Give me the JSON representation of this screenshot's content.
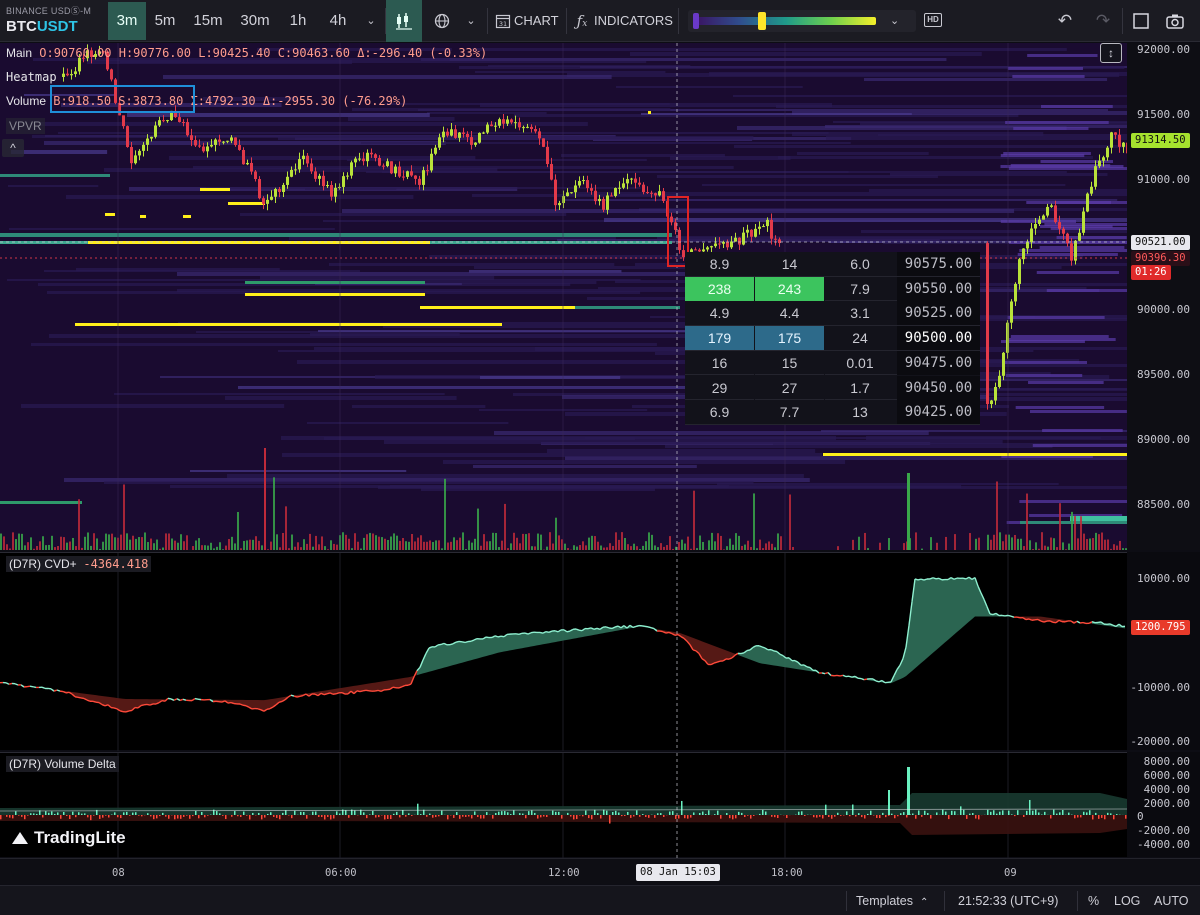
{
  "toolbar": {
    "exchange": "BINANCE USDⓈ-M",
    "symbol_base": "BTC",
    "symbol_quote": "USDT",
    "timeframes": [
      "3m",
      "5m",
      "15m",
      "30m",
      "1h",
      "4h"
    ],
    "active_timeframe": "3m",
    "chart_label": "CHART",
    "indicators_label": "INDICATORS",
    "hd_label": "HD"
  },
  "legend": {
    "main_label": "Main",
    "open": "O:90760.00",
    "high": "H:90776.00",
    "low": "L:90425.40",
    "close": "C:90463.60",
    "change": "Δ:-296.40 (-0.33%)",
    "heatmap_label": "Heatmap",
    "volume_label": "Volume",
    "buy": "B:918.50",
    "sell": "S:3873.80",
    "sum": "Σ:4792.30",
    "delta": "Δ:-2955.30 (-76.29%)",
    "vpvr_label": "VPVR",
    "collapse_symbol": "^"
  },
  "price_axis": {
    "ticks": [
      "92000.00",
      "91500.00",
      "91000.00",
      "90500.00",
      "90000.00",
      "89500.00",
      "89000.00",
      "88500.00"
    ],
    "last_price": "91314.50",
    "crosshair_price": "90521.00",
    "current_price": "90396.30",
    "countdown": "01:26"
  },
  "orderbook": {
    "rows": [
      {
        "bid": "8.9",
        "ask": "14",
        "total": "6.0",
        "price": "90575.00",
        "highlight": "none"
      },
      {
        "bid": "238",
        "ask": "243",
        "total": "7.9",
        "price": "90550.00",
        "highlight": "green"
      },
      {
        "bid": "4.9",
        "ask": "4.4",
        "total": "3.1",
        "price": "90525.00",
        "highlight": "none"
      },
      {
        "bid": "179",
        "ask": "175",
        "total": "24",
        "price": "90500.00",
        "highlight": "blue"
      },
      {
        "bid": "16",
        "ask": "15",
        "total": "0.01",
        "price": "90475.00",
        "highlight": "none"
      },
      {
        "bid": "29",
        "ask": "27",
        "total": "1.7",
        "price": "90450.00",
        "highlight": "none"
      },
      {
        "bid": "6.9",
        "ask": "7.7",
        "total": "13",
        "price": "90425.00",
        "highlight": "none"
      }
    ]
  },
  "cvd": {
    "title": "(D7R) CVD+",
    "value": "-4364.418",
    "ticks": [
      "10000.00",
      "-10000.00",
      "-20000.00"
    ],
    "last": "1200.795"
  },
  "volume_delta": {
    "title": "(D7R) Volume Delta",
    "ticks": [
      "8000.00",
      "6000.00",
      "4000.00",
      "2000.00",
      "0",
      "-2000.00",
      "-4000.00"
    ]
  },
  "time_axis": {
    "labels": [
      "08",
      "06:00",
      "12:00",
      "18:00",
      "09"
    ],
    "crosshair_time": "08 Jan 15:03"
  },
  "status_bar": {
    "templates_label": "Templates",
    "clock": "21:52:33 (UTC+9)",
    "percent_label": "%",
    "log_label": "LOG",
    "auto_label": "AUTO"
  },
  "brand": "TradingLite",
  "colors": {
    "heatmap_bg": "#1a0b30",
    "bull": "#b9e23a",
    "bear": "#e23a4a",
    "liquidity": "#ffef1a",
    "cvd_up": "#2d6a55",
    "cvd_down": "#5a1a16",
    "accent_teal": "#2c5a51"
  }
}
